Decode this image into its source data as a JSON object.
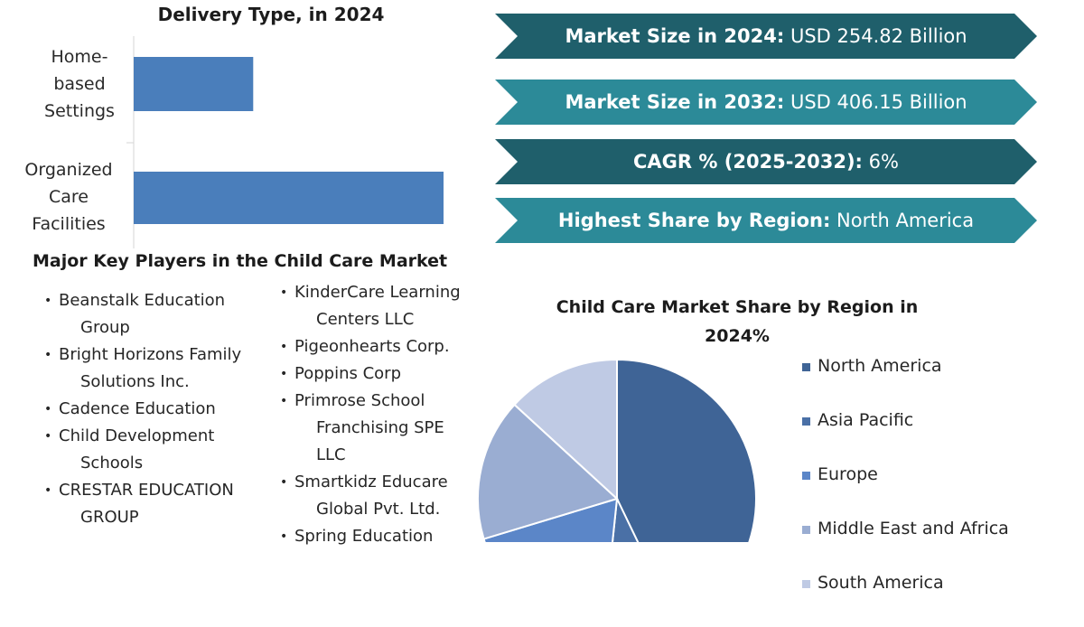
{
  "chart_data": [
    {
      "type": "bar",
      "orientation": "horizontal",
      "title": "Delivery Type, in 2024",
      "categories": [
        "Home-based Settings",
        "Organized Care Facilities"
      ],
      "values": [
        27,
        70
      ],
      "xlim": [
        0,
        100
      ],
      "grid": false,
      "color": "#4a7ebb"
    },
    {
      "type": "pie",
      "title": "Child Care Market Share by Region in 2024%",
      "labels": [
        "North America",
        "Asia Pacific",
        "Europe",
        "Middle East and Africa",
        "South America"
      ],
      "values": [
        39,
        8,
        17,
        15,
        12
      ],
      "colors": [
        "#3f6496",
        "#4a70a6",
        "#5b86c8",
        "#9aadd2",
        "#bfcae4"
      ],
      "legend_position": "right"
    }
  ],
  "banners": [
    {
      "label": "Market Size in 2024:",
      "value": "USD 254.82 Billion",
      "color": "#1f5f6b"
    },
    {
      "label": "Market Size in 2032:",
      "value": "USD 406.15 Billion",
      "color": "#2c8a98"
    },
    {
      "label": "CAGR % (2025-2032):",
      "value": "6%",
      "color": "#1f5f6b"
    },
    {
      "label": "Highest Share by Region:",
      "value": "North America",
      "color": "#2c8a98"
    }
  ],
  "players": {
    "title": "Major Key Players in the Child Care Market",
    "col1": [
      [
        "Beanstalk Education",
        "Group"
      ],
      [
        "Bright Horizons Family",
        "Solutions Inc."
      ],
      [
        "Cadence Education"
      ],
      [
        "Child Development",
        "Schools"
      ],
      [
        "CRESTAR EDUCATION",
        "GROUP"
      ]
    ],
    "col2": [
      [
        "KinderCare Learning",
        "Centers LLC"
      ],
      [
        "Pigeonhearts Corp."
      ],
      [
        "Poppins Corp"
      ],
      [
        "Primrose School",
        "Franchising SPE",
        "LLC"
      ],
      [
        "Smartkidz Educare",
        "Global Pvt. Ltd."
      ],
      [
        "Spring Education"
      ]
    ]
  }
}
